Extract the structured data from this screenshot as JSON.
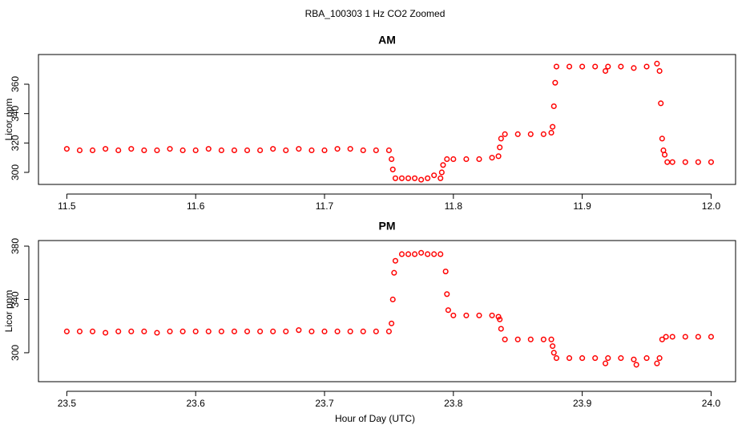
{
  "title": "RBA_100303  1 Hz CO2 Zoomed",
  "xlabel": "Hour of Day (UTC)",
  "chart_data": [
    {
      "type": "scatter",
      "title": "AM",
      "ylabel": "Licor ppm",
      "color": "#ff0000",
      "xlim": [
        11.478,
        12.019
      ],
      "ylim": [
        291.8,
        380.2
      ],
      "xticks": [
        11.5,
        11.6,
        11.7,
        11.8,
        11.9,
        {
          "value": 12,
          "label": "12.0"
        }
      ],
      "yticks": [
        300,
        320,
        340,
        360
      ],
      "x": [
        11.5,
        11.51,
        11.52,
        11.53,
        11.54,
        11.55,
        11.56,
        11.57,
        11.58,
        11.59,
        11.6,
        11.61,
        11.62,
        11.63,
        11.64,
        11.65,
        11.66,
        11.67,
        11.68,
        11.69,
        11.7,
        11.71,
        11.72,
        11.73,
        11.74,
        11.75,
        11.752,
        11.753,
        11.755,
        11.76,
        11.765,
        11.77,
        11.775,
        11.78,
        11.785,
        11.79,
        11.791,
        11.792,
        11.795,
        11.8,
        11.81,
        11.82,
        11.83,
        11.835,
        11.836,
        11.837,
        11.84,
        11.85,
        11.86,
        11.87,
        11.876,
        11.877,
        11.878,
        11.879,
        11.88,
        11.89,
        11.9,
        11.91,
        11.918,
        11.92,
        11.93,
        11.94,
        11.95,
        11.958,
        11.96,
        11.961,
        11.962,
        11.963,
        11.964,
        11.966,
        11.97,
        11.98,
        11.99,
        12.0
      ],
      "values": [
        316,
        315,
        315,
        316,
        315,
        316,
        315,
        315,
        316,
        315,
        315,
        316,
        315,
        315,
        315,
        315,
        316,
        315,
        316,
        315,
        315,
        316,
        316,
        315,
        315,
        315,
        309,
        302,
        296,
        296,
        296,
        296,
        295,
        296,
        298,
        296,
        300,
        305,
        309,
        309,
        309,
        309,
        310,
        311,
        317,
        323,
        326,
        326,
        326,
        326,
        327,
        331,
        345,
        361,
        372,
        372,
        372,
        372,
        369,
        372,
        372,
        371,
        372,
        374,
        369,
        347,
        323,
        315,
        312,
        307,
        307,
        307,
        307,
        307
      ]
    },
    {
      "type": "scatter",
      "title": "PM",
      "ylabel": "Licor ppm",
      "color": "#ff0000",
      "xlim": [
        23.478,
        24.019
      ],
      "ylim": [
        278.3,
        384.2
      ],
      "xticks": [
        23.5,
        23.6,
        23.7,
        23.8,
        23.9,
        {
          "value": 24,
          "label": "24.0"
        }
      ],
      "yticks": [
        300,
        340,
        380
      ],
      "x": [
        23.5,
        23.51,
        23.52,
        23.53,
        23.54,
        23.55,
        23.56,
        23.57,
        23.58,
        23.59,
        23.6,
        23.61,
        23.62,
        23.63,
        23.64,
        23.65,
        23.66,
        23.67,
        23.68,
        23.69,
        23.7,
        23.71,
        23.72,
        23.73,
        23.74,
        23.75,
        23.752,
        23.753,
        23.754,
        23.755,
        23.76,
        23.765,
        23.77,
        23.775,
        23.78,
        23.785,
        23.79,
        23.794,
        23.795,
        23.796,
        23.8,
        23.81,
        23.82,
        23.83,
        23.835,
        23.836,
        23.837,
        23.84,
        23.85,
        23.86,
        23.87,
        23.876,
        23.877,
        23.878,
        23.88,
        23.89,
        23.9,
        23.91,
        23.918,
        23.92,
        23.93,
        23.94,
        23.942,
        23.95,
        23.958,
        23.96,
        23.962,
        23.965,
        23.97,
        23.98,
        23.99,
        24.0
      ],
      "values": [
        316,
        316,
        316,
        315,
        316,
        316,
        316,
        315,
        316,
        316,
        316,
        316,
        316,
        316,
        316,
        316,
        316,
        316,
        317,
        316,
        316,
        316,
        316,
        316,
        316,
        316,
        322,
        340,
        360,
        369,
        374,
        374,
        374,
        375,
        374,
        374,
        374,
        361,
        344,
        332,
        328,
        328,
        328,
        328,
        327,
        325,
        318,
        310,
        310,
        310,
        310,
        310,
        305,
        300,
        296,
        296,
        296,
        296,
        292,
        296,
        296,
        295,
        291,
        296,
        292,
        296,
        310,
        312,
        312,
        312,
        312,
        312
      ]
    }
  ]
}
